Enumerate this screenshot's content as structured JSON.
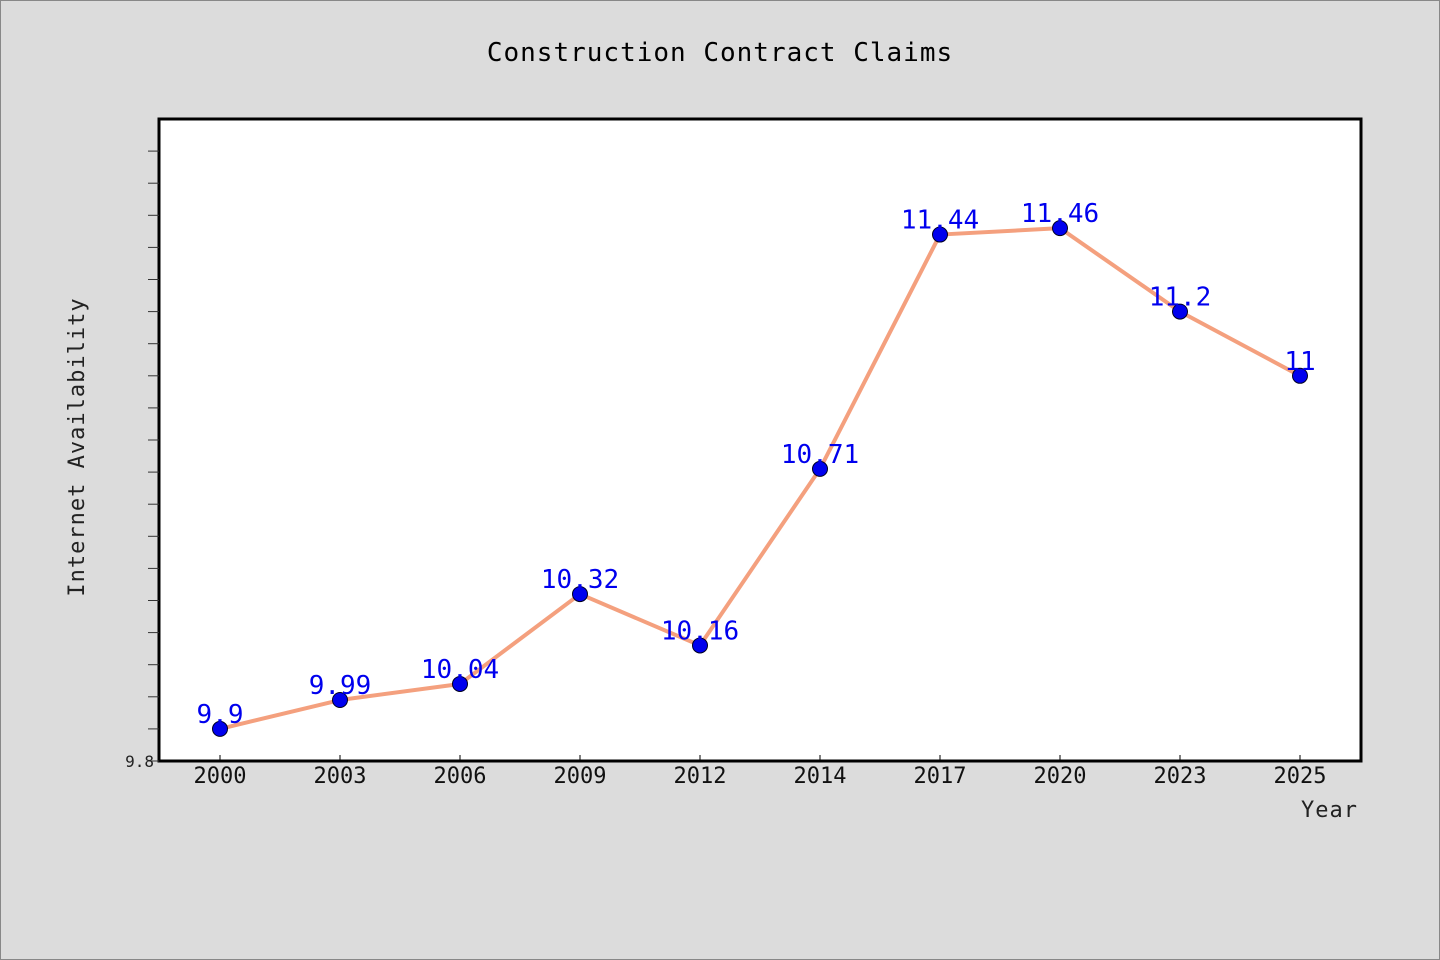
{
  "chart_data": {
    "type": "line",
    "title": "Construction Contract Claims",
    "xlabel": "Year",
    "ylabel": "Internet Availability",
    "categories": [
      "2000",
      "2003",
      "2006",
      "2009",
      "2012",
      "2014",
      "2017",
      "2020",
      "2023",
      "2025"
    ],
    "series": [
      {
        "values": [
          9.9,
          9.99,
          10.04,
          10.32,
          10.16,
          10.71,
          11.44,
          11.46,
          11.2,
          11
        ]
      }
    ],
    "data_labels": [
      "9.9",
      "9.99",
      "10.04",
      "10.32",
      "10.16",
      "10.71",
      "11.44",
      "11.46",
      "11.2",
      "11"
    ],
    "ylim": [
      9.8,
      11.8
    ],
    "yticks_labeled": [
      "9.8"
    ],
    "grid": false,
    "colors": {
      "line": "#f4a07e",
      "marker": "#0000ee",
      "label": "#0000ee",
      "background": "#dcdcdc",
      "plot_background": "#ffffff"
    }
  }
}
